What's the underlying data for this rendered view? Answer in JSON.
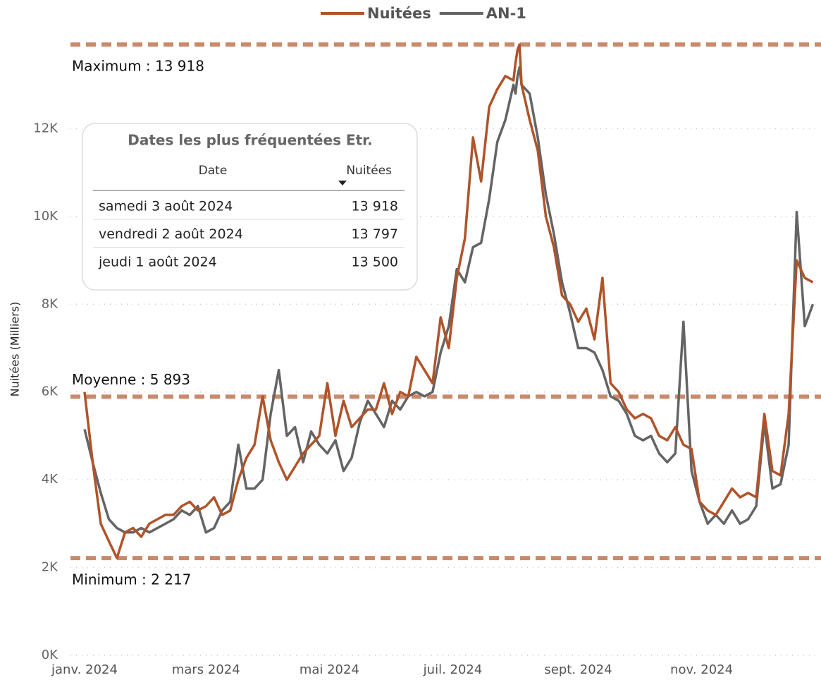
{
  "chart_data": {
    "type": "line",
    "legend": "top",
    "y_label": "Nuitées (Milliers)",
    "x": [
      0,
      4,
      8,
      12,
      16,
      20,
      24,
      28,
      32,
      36,
      40,
      44,
      48,
      52,
      56,
      60,
      64,
      68,
      72,
      76,
      80,
      84,
      88,
      92,
      96,
      100,
      104,
      108,
      112,
      116,
      120,
      124,
      128,
      132,
      136,
      140,
      144,
      148,
      152,
      156,
      160,
      164,
      168,
      172,
      176,
      180,
      184,
      188,
      192,
      196,
      200,
      204,
      208,
      212,
      213,
      214,
      215,
      216,
      220,
      224,
      228,
      232,
      236,
      240,
      244,
      248,
      252,
      256,
      260,
      264,
      268,
      272,
      276,
      280,
      284,
      288,
      292,
      296,
      300,
      304,
      308,
      312,
      316,
      320,
      324,
      328,
      332,
      336,
      340,
      344,
      348,
      352,
      356,
      360
    ],
    "series": [
      {
        "name": "Nuitées",
        "color": "#b0532a",
        "values": [
          6000,
          4400,
          3000,
          2600,
          2217,
          2800,
          2900,
          2700,
          3000,
          3100,
          3200,
          3200,
          3400,
          3500,
          3300,
          3400,
          3600,
          3200,
          3300,
          4000,
          4500,
          4800,
          5900,
          4900,
          4400,
          4000,
          4300,
          4600,
          4800,
          5000,
          6200,
          5000,
          5800,
          5200,
          5400,
          5600,
          5600,
          6200,
          5500,
          6000,
          5900,
          6800,
          6500,
          6200,
          7700,
          7000,
          8600,
          9500,
          11800,
          10800,
          12500,
          12900,
          13200,
          13100,
          13500,
          13797,
          13918,
          13000,
          12200,
          11500,
          10000,
          9300,
          8200,
          8000,
          7600,
          7900,
          7200,
          8600,
          6200,
          6000,
          5600,
          5400,
          5500,
          5400,
          5000,
          4900,
          5200,
          4800,
          4700,
          3500,
          3300,
          3200,
          3500,
          3800,
          3600,
          3700,
          3600,
          5500,
          4200,
          4100,
          5500,
          9000,
          8600,
          8500
        ]
      },
      {
        "name": "AN-1",
        "color": "#646464",
        "values": [
          5150,
          4400,
          3700,
          3100,
          2900,
          2800,
          2800,
          2900,
          2800,
          2900,
          3000,
          3100,
          3300,
          3200,
          3400,
          2800,
          2900,
          3300,
          3500,
          4800,
          3800,
          3800,
          4000,
          5500,
          6500,
          5000,
          5200,
          4400,
          5100,
          4800,
          4600,
          4900,
          4200,
          4500,
          5300,
          5800,
          5500,
          5200,
          5800,
          5600,
          5900,
          6000,
          5900,
          6000,
          6900,
          7500,
          8800,
          8500,
          9300,
          9400,
          10400,
          11700,
          12200,
          13000,
          12800,
          13200,
          13400,
          13000,
          12800,
          11800,
          10500,
          9600,
          8500,
          7800,
          7000,
          7000,
          6900,
          6500,
          5900,
          5800,
          5500,
          5000,
          4900,
          5000,
          4600,
          4400,
          4600,
          7600,
          4200,
          3500,
          3000,
          3200,
          3000,
          3300,
          3000,
          3100,
          3400,
          5300,
          3800,
          3900,
          4800,
          10100,
          7500,
          8000
        ]
      }
    ],
    "xlim": [
      0,
      364
    ],
    "xticks": [
      {
        "value": 0,
        "label": "janv. 2024"
      },
      {
        "value": 60,
        "label": "mars 2024"
      },
      {
        "value": 121,
        "label": "mai 2024"
      },
      {
        "value": 182,
        "label": "juil. 2024"
      },
      {
        "value": 244,
        "label": "sept. 2024"
      },
      {
        "value": 305,
        "label": "nov. 2024"
      }
    ],
    "ylim": [
      0,
      14000
    ],
    "yticks": [
      {
        "value": 0,
        "label": "0K"
      },
      {
        "value": 2000,
        "label": "2K"
      },
      {
        "value": 4000,
        "label": "4K"
      },
      {
        "value": 6000,
        "label": "6K"
      },
      {
        "value": 8000,
        "label": "8K"
      },
      {
        "value": 10000,
        "label": "10K"
      },
      {
        "value": 12000,
        "label": "12K"
      }
    ],
    "grid": true,
    "reference_lines": [
      {
        "value": 13918,
        "label": "Maximum : 13 918"
      },
      {
        "value": 5893,
        "label": "Moyenne : 5 893"
      },
      {
        "value": 2217,
        "label": "Minimum : 2 217"
      }
    ],
    "reference_color": "#c98a6c",
    "table": {
      "title": "Dates les plus fréquentées Etr.",
      "columns": [
        "Date",
        "Nuitées"
      ],
      "rows": [
        [
          "samedi 3 août 2024",
          "13 918"
        ],
        [
          "vendredi 2 août 2024",
          "13 797"
        ],
        [
          "jeudi 1 août 2024",
          "13 500"
        ]
      ]
    }
  }
}
